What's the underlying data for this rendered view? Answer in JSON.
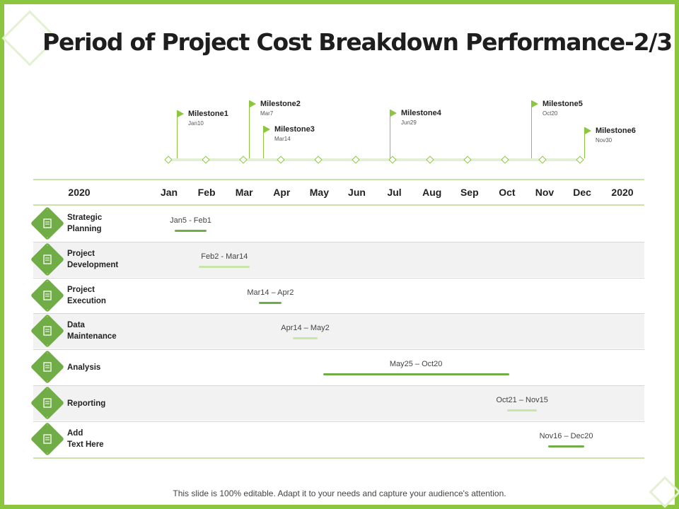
{
  "title": "Period of Project Cost Breakdown Performance-2/3",
  "colors": {
    "accent": "#8cc63f",
    "icon_bg": "#70ad47",
    "bar_dark": "#70ad47",
    "bar_light": "#c9e5a8",
    "alt_row": "#f2f2f2"
  },
  "milestones": [
    {
      "name": "Milestone1",
      "date": "Jan10"
    },
    {
      "name": "Milestone2",
      "date": "Mar7"
    },
    {
      "name": "Milestone3",
      "date": "Mar14"
    },
    {
      "name": "Milestone4",
      "date": "Jun29"
    },
    {
      "name": "Milestone5",
      "date": "Oct20"
    },
    {
      "name": "Milestone6",
      "date": "Nov30"
    }
  ],
  "header": {
    "year_left": "2020",
    "months": [
      "Jan",
      "Feb",
      "Mar",
      "Apr",
      "May",
      "Jun",
      "Jul",
      "Aug",
      "Sep",
      "Oct",
      "Nov",
      "Dec"
    ],
    "year_right": "2020"
  },
  "tasks": [
    {
      "label": "Strategic\nPlanning",
      "range": "Jan5 - Feb1",
      "icon": "chart-icon",
      "start_month": 0.15,
      "end_month": 1.0,
      "bar_tone": "dark"
    },
    {
      "label": "Project\nDevelopment",
      "range": "Feb2 - Mar14",
      "icon": "document-icon",
      "start_month": 0.8,
      "end_month": 2.15,
      "bar_tone": "light"
    },
    {
      "label": "Project\nExecution",
      "range": "Mar14 – Apr2",
      "icon": "gear-icon",
      "start_month": 2.4,
      "end_month": 3.0,
      "bar_tone": "dark"
    },
    {
      "label": "Data\nMaintenance",
      "range": "Apr14 – May2",
      "icon": "server-icon",
      "start_month": 3.3,
      "end_month": 3.95,
      "bar_tone": "light"
    },
    {
      "label": "Analysis",
      "range": "May25 – Oct20",
      "icon": "magnifier-icon",
      "start_month": 4.1,
      "end_month": 9.05,
      "bar_tone": "dark"
    },
    {
      "label": "Reporting",
      "range": "Oct21 – Nov15",
      "icon": "clipboard-icon",
      "start_month": 9.0,
      "end_month": 9.8,
      "bar_tone": "light"
    },
    {
      "label": "Add\nText Here",
      "range": "Nov16 – Dec20",
      "icon": "checklist-icon",
      "start_month": 10.1,
      "end_month": 11.05,
      "bar_tone": "dark"
    }
  ],
  "footer": "This slide is 100% editable. Adapt it to your needs and capture your audience's attention."
}
